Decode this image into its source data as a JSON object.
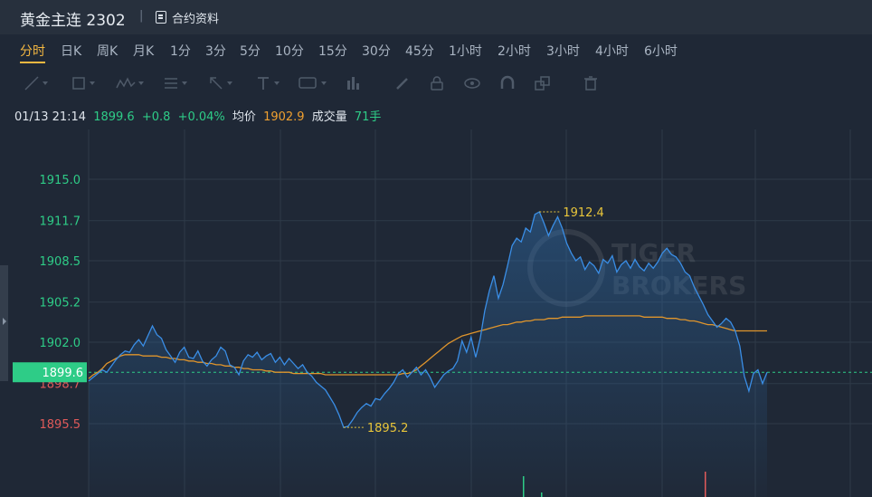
{
  "header": {
    "title": "黄金主连 2302",
    "separator": "|",
    "contract_info_label": "合约资料",
    "contract_info_icon": "document-icon"
  },
  "tabs": [
    {
      "label": "分时",
      "active": true
    },
    {
      "label": "日K"
    },
    {
      "label": "周K"
    },
    {
      "label": "月K"
    },
    {
      "label": "1分"
    },
    {
      "label": "3分"
    },
    {
      "label": "5分"
    },
    {
      "label": "10分"
    },
    {
      "label": "15分"
    },
    {
      "label": "30分"
    },
    {
      "label": "45分"
    },
    {
      "label": "1小时"
    },
    {
      "label": "2小时"
    },
    {
      "label": "3小时"
    },
    {
      "label": "4小时"
    },
    {
      "label": "6小时"
    }
  ],
  "toolbar": [
    "line-tool-icon",
    "rectangle-tool-icon",
    "pattern-tool-icon",
    "fibonacci-tool-icon",
    "arrow-tool-icon",
    "text-tool-icon",
    "annotation-tool-icon",
    "bars-tool-icon",
    "pencil-icon",
    "lock-icon",
    "eye-icon",
    "magnet-icon",
    "layers-icon",
    "trash-icon"
  ],
  "info": {
    "time": "01/13 21:14",
    "price": "1899.6",
    "change": "+0.8",
    "change_pct": "+0.04%",
    "avg_label": "均价",
    "avg_value": "1902.9",
    "volume_label": "成交量",
    "volume_value": "71手"
  },
  "colors": {
    "price_line": "#3a8ee6",
    "avg_line": "#e0952c",
    "up": "#2ecc87",
    "down": "#e05a5a",
    "accent": "#f5b841"
  },
  "chart_data": {
    "type": "line",
    "y_ticks": [
      "1915.0",
      "1911.7",
      "1908.5",
      "1905.2",
      "1902.0",
      "1898.7",
      "1895.5"
    ],
    "y_tick_values": [
      1915.0,
      1911.7,
      1908.5,
      1905.2,
      1902.0,
      1898.7,
      1895.5
    ],
    "prev_close": 1898.8,
    "current_price": 1899.6,
    "current_price_label": "1899.6",
    "high_label": "1912.4",
    "low_label": "1895.2",
    "n_points": 150,
    "series": [
      {
        "values": [
          1898.9,
          1899.2,
          1899.5,
          1899.8,
          1899.6,
          1900.1,
          1900.6,
          1901.0,
          1901.3,
          1901.2,
          1901.8,
          1902.2,
          1901.7,
          1902.5,
          1903.3,
          1902.6,
          1902.3,
          1901.4,
          1900.9,
          1900.4,
          1901.2,
          1901.6,
          1900.8,
          1900.7,
          1901.3,
          1900.5,
          1900.1,
          1900.6,
          1900.9,
          1901.6,
          1901.3,
          1900.2,
          1900.0,
          1899.4,
          1900.5,
          1901.0,
          1900.8,
          1901.2,
          1900.6,
          1900.9,
          1901.1,
          1900.4,
          1900.8,
          1900.2,
          1900.7,
          1900.3,
          1899.9,
          1900.2,
          1899.6,
          1899.3,
          1898.8,
          1898.5,
          1898.2,
          1897.6,
          1897.0,
          1896.2,
          1895.2,
          1895.3,
          1895.8,
          1896.4,
          1896.8,
          1897.1,
          1896.9,
          1897.5,
          1897.4,
          1897.9,
          1898.3,
          1898.8,
          1899.5,
          1899.8,
          1899.2,
          1899.6,
          1900.0,
          1899.4,
          1899.8,
          1899.2,
          1898.4,
          1898.9,
          1899.4,
          1899.7,
          1899.9,
          1900.5,
          1902.1,
          1901.2,
          1902.4,
          1900.8,
          1902.3,
          1904.5,
          1906.1,
          1907.3,
          1905.5,
          1906.6,
          1908.1,
          1909.7,
          1910.3,
          1910.0,
          1911.1,
          1910.8,
          1912.2,
          1912.4,
          1911.5,
          1910.5,
          1911.3,
          1912.0,
          1911.1,
          1909.9,
          1909.1,
          1908.5,
          1908.8,
          1907.8,
          1908.4,
          1908.1,
          1907.5,
          1908.6,
          1908.3,
          1908.9,
          1907.6,
          1908.2,
          1908.5,
          1907.9,
          1908.6,
          1908.0,
          1907.7,
          1908.3,
          1907.9,
          1908.4,
          1909.1,
          1909.5,
          1909.0,
          1908.8,
          1908.3,
          1907.6,
          1907.3,
          1906.4,
          1905.7,
          1905.0,
          1904.2,
          1903.7,
          1903.2,
          1903.5,
          1903.9,
          1903.6,
          1902.9,
          1901.7,
          1899.3,
          1898.1,
          1899.5,
          1899.8,
          1898.7,
          1899.6
        ]
      },
      {
        "values": [
          1899.1,
          1899.4,
          1899.6,
          1899.9,
          1900.3,
          1900.5,
          1900.7,
          1900.9,
          1901.0,
          1901.0,
          1901.0,
          1901.0,
          1900.9,
          1900.9,
          1900.9,
          1900.9,
          1900.8,
          1900.8,
          1900.7,
          1900.7,
          1900.6,
          1900.6,
          1900.5,
          1900.5,
          1900.4,
          1900.4,
          1900.3,
          1900.3,
          1900.2,
          1900.2,
          1900.1,
          1900.1,
          1900.0,
          1900.0,
          1899.9,
          1899.9,
          1899.8,
          1899.8,
          1899.8,
          1899.7,
          1899.7,
          1899.6,
          1899.6,
          1899.6,
          1899.6,
          1899.5,
          1899.5,
          1899.5,
          1899.5,
          1899.5,
          1899.5,
          1899.5,
          1899.4,
          1899.4,
          1899.4,
          1899.4,
          1899.4,
          1899.4,
          1899.4,
          1899.4,
          1899.4,
          1899.4,
          1899.4,
          1899.4,
          1899.4,
          1899.4,
          1899.4,
          1899.4,
          1899.4,
          1899.5,
          1899.5,
          1899.6,
          1899.8,
          1900.1,
          1900.4,
          1900.7,
          1901.0,
          1901.3,
          1901.6,
          1901.9,
          1902.1,
          1902.3,
          1902.5,
          1902.6,
          1902.7,
          1902.8,
          1902.9,
          1903.0,
          1903.1,
          1903.2,
          1903.3,
          1903.4,
          1903.4,
          1903.5,
          1903.6,
          1903.6,
          1903.7,
          1903.7,
          1903.8,
          1903.8,
          1903.8,
          1903.9,
          1903.9,
          1903.9,
          1904.0,
          1904.0,
          1904.0,
          1904.0,
          1904.0,
          1904.1,
          1904.1,
          1904.1,
          1904.1,
          1904.1,
          1904.1,
          1904.1,
          1904.1,
          1904.1,
          1904.1,
          1904.1,
          1904.1,
          1904.1,
          1904.0,
          1904.0,
          1904.0,
          1904.0,
          1904.0,
          1903.9,
          1903.9,
          1903.9,
          1903.8,
          1903.8,
          1903.7,
          1903.7,
          1903.6,
          1903.5,
          1903.4,
          1903.4,
          1903.3,
          1903.2,
          1903.1,
          1903.0,
          1902.9,
          1902.9,
          1902.9,
          1902.9,
          1902.9,
          1902.9,
          1902.9,
          1902.9
        ]
      }
    ]
  }
}
